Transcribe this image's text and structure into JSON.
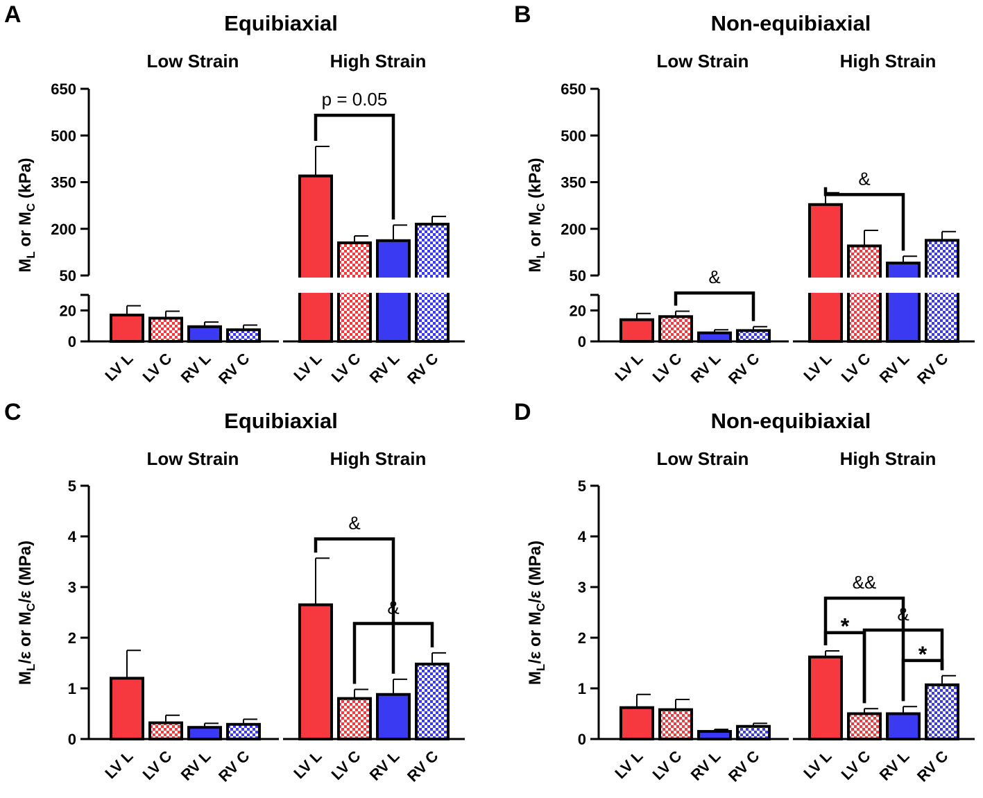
{
  "colors": {
    "red": "#f5393f",
    "blue": "#3a3af2",
    "black": "#000000",
    "white": "#ffffff"
  },
  "chart_data": [
    {
      "type": "bar",
      "panel": "A",
      "title": "Equibiaxial",
      "ylabel_parts": [
        "M",
        "L",
        " or M",
        "C",
        " (kPa)"
      ],
      "y_axis": "broken",
      "ylim_lower": [
        0,
        30
      ],
      "ylim_upper": [
        50,
        650
      ],
      "yticks_lower": [
        "0",
        "20"
      ],
      "yticks_upper": [
        "50",
        "200",
        "350",
        "500",
        "650"
      ],
      "groups": [
        {
          "name": "Low Strain",
          "categories": [
            "LV L",
            "LV C",
            "RV L",
            "RV C"
          ],
          "values": [
            17,
            15,
            9.5,
            7.5
          ],
          "errors": [
            6,
            4.5,
            3,
            3
          ]
        },
        {
          "name": "High Strain",
          "categories": [
            "LV L",
            "LV C",
            "RV L",
            "RV C"
          ],
          "values": [
            370,
            155,
            162,
            215
          ],
          "errors": [
            95,
            22,
            50,
            25
          ]
        }
      ],
      "annotations": [
        {
          "group": 1,
          "from": 0,
          "to": 2,
          "label": "p = 0.05",
          "y": 565,
          "style": "normal"
        }
      ]
    },
    {
      "type": "bar",
      "panel": "B",
      "title": "Non-equibiaxial",
      "ylabel_parts": [
        "M",
        "L",
        " or M",
        "C",
        " (kPa)"
      ],
      "y_axis": "broken",
      "ylim_lower": [
        0,
        30
      ],
      "ylim_upper": [
        50,
        650
      ],
      "yticks_lower": [
        "0",
        "20"
      ],
      "yticks_upper": [
        "50",
        "200",
        "350",
        "500",
        "650"
      ],
      "groups": [
        {
          "name": "Low Strain",
          "categories": [
            "LV L",
            "LV C",
            "RV L",
            "RV C"
          ],
          "values": [
            14,
            16,
            5.5,
            7
          ],
          "errors": [
            4,
            3.5,
            2,
            2.5
          ]
        },
        {
          "name": "High Strain",
          "categories": [
            "LV L",
            "LV C",
            "RV L",
            "RV C"
          ],
          "values": [
            278,
            145,
            90,
            163
          ],
          "errors": [
            38,
            50,
            22,
            28
          ]
        }
      ],
      "annotations": [
        {
          "group": 0,
          "from": 1,
          "to": 3,
          "label": "&",
          "y": 32,
          "style": "normal"
        },
        {
          "group": 1,
          "from": 0,
          "to": 2,
          "label": "&",
          "y": 310,
          "style": "normal"
        }
      ]
    },
    {
      "type": "bar",
      "panel": "C",
      "title": "Equibiaxial",
      "ylabel_parts": [
        "M",
        "L",
        "/ε or M",
        "C",
        "/ε (MPa)"
      ],
      "y_axis": "linear",
      "ylim": [
        0,
        5
      ],
      "yticks": [
        "0",
        "1",
        "2",
        "3",
        "4",
        "5"
      ],
      "groups": [
        {
          "name": "Low Strain",
          "categories": [
            "LV L",
            "LV C",
            "RV L",
            "RV C"
          ],
          "values": [
            1.2,
            0.32,
            0.23,
            0.29
          ],
          "errors": [
            0.55,
            0.15,
            0.08,
            0.1
          ]
        },
        {
          "name": "High Strain",
          "categories": [
            "LV L",
            "LV C",
            "RV L",
            "RV C"
          ],
          "values": [
            2.65,
            0.8,
            0.88,
            1.48
          ],
          "errors": [
            0.92,
            0.18,
            0.3,
            0.22
          ]
        }
      ],
      "annotations": [
        {
          "group": 1,
          "from": 0,
          "to": 2,
          "label": "&",
          "y": 3.95,
          "style": "normal"
        },
        {
          "group": 1,
          "from": 1,
          "to": 3,
          "label": "&",
          "y": 2.28,
          "style": "normal"
        }
      ]
    },
    {
      "type": "bar",
      "panel": "D",
      "title": "Non-equibiaxial",
      "ylabel_parts": [
        "M",
        "L",
        "/ε or M",
        "C",
        "/ε (MPa)"
      ],
      "y_axis": "linear",
      "ylim": [
        0,
        5
      ],
      "yticks": [
        "0",
        "1",
        "2",
        "3",
        "4",
        "5"
      ],
      "groups": [
        {
          "name": "Low Strain",
          "categories": [
            "LV L",
            "LV C",
            "RV L",
            "RV C"
          ],
          "values": [
            0.62,
            0.58,
            0.15,
            0.25
          ],
          "errors": [
            0.26,
            0.2,
            0.04,
            0.06
          ]
        },
        {
          "name": "High Strain",
          "categories": [
            "LV L",
            "LV C",
            "RV L",
            "RV C"
          ],
          "values": [
            1.62,
            0.5,
            0.5,
            1.07
          ],
          "errors": [
            0.12,
            0.1,
            0.14,
            0.18
          ]
        }
      ],
      "annotations": [
        {
          "group": 1,
          "from": 0,
          "to": 2,
          "label": "&&",
          "y": 2.78,
          "style": "normal"
        },
        {
          "group": 1,
          "from": 0,
          "to": 1,
          "label": "*",
          "y": 2.1,
          "style": "bold"
        },
        {
          "group": 1,
          "from": 1,
          "to": 3,
          "label": "&",
          "y": 2.15,
          "style": "normal"
        },
        {
          "group": 1,
          "from": 2,
          "to": 3,
          "label": "*",
          "y": 1.55,
          "style": "bold"
        }
      ]
    }
  ]
}
